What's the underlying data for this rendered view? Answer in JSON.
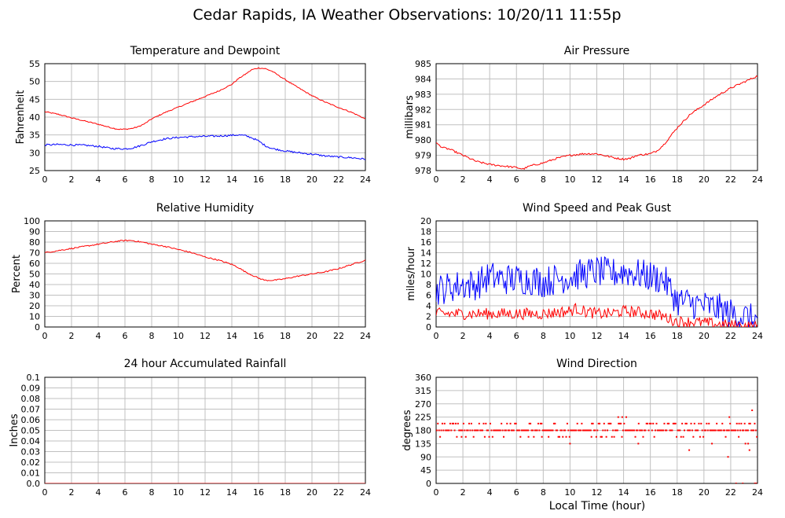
{
  "page_title": "Cedar Rapids, IA Weather Observations: 10/20/11 11:55p",
  "colors": {
    "red": "#ff0000",
    "blue": "#0000ff",
    "grid": "#c0c0c0",
    "frame": "#000000"
  },
  "chart_data": [
    {
      "id": "temperature",
      "type": "line",
      "title": "Temperature and Dewpoint",
      "ylabel": "Fahrenheit",
      "xlabel": "",
      "xlim": [
        0,
        24
      ],
      "ylim": [
        25,
        55
      ],
      "xticks": [
        "0",
        "2",
        "4",
        "6",
        "8",
        "10",
        "12",
        "14",
        "16",
        "18",
        "20",
        "22",
        "24"
      ],
      "yticks": [
        "25",
        "30",
        "35",
        "40",
        "45",
        "50",
        "55"
      ],
      "grid": true,
      "series": [
        {
          "color": "#ff0000",
          "noise": 0.15,
          "x": [
            0,
            1,
            2,
            3,
            4,
            5,
            5.5,
            6,
            6.5,
            7,
            7.5,
            8,
            9,
            10,
            11,
            12,
            13,
            14,
            14.5,
            15,
            15.5,
            16,
            16.5,
            17,
            18,
            19,
            20,
            21,
            22,
            23,
            24
          ],
          "y": [
            41.5,
            40.8,
            39.8,
            38.9,
            38.0,
            37.0,
            36.6,
            36.6,
            36.8,
            37.3,
            38.2,
            39.5,
            41.3,
            42.8,
            44.3,
            45.8,
            47.3,
            49.2,
            50.8,
            52.0,
            53.3,
            53.8,
            53.6,
            52.9,
            50.5,
            48.2,
            46.0,
            44.2,
            42.7,
            41.3,
            39.5
          ]
        },
        {
          "color": "#0000ff",
          "noise": 0.25,
          "x": [
            0,
            1,
            2,
            3,
            4,
            5,
            6,
            6.5,
            7,
            7.5,
            8,
            9,
            10,
            11,
            12,
            13,
            14,
            14.5,
            15,
            15.5,
            16,
            16.5,
            17,
            18,
            19,
            20,
            21,
            22,
            23,
            24
          ],
          "y": [
            32.2,
            32.3,
            32.2,
            32.1,
            31.8,
            31.2,
            31.1,
            31.3,
            31.8,
            32.4,
            33.1,
            33.9,
            34.3,
            34.5,
            34.6,
            34.7,
            34.9,
            35.0,
            34.8,
            34.2,
            33.3,
            32.0,
            31.2,
            30.5,
            30.0,
            29.6,
            29.1,
            28.8,
            28.6,
            28.2
          ]
        }
      ]
    },
    {
      "id": "pressure",
      "type": "line",
      "title": "Air Pressure",
      "ylabel": "millibars",
      "xlabel": "",
      "xlim": [
        0,
        24
      ],
      "ylim": [
        978,
        985
      ],
      "xticks": [
        "0",
        "2",
        "4",
        "6",
        "8",
        "10",
        "12",
        "14",
        "16",
        "18",
        "20",
        "22",
        "24"
      ],
      "yticks": [
        "978",
        "979",
        "980",
        "981",
        "982",
        "983",
        "984",
        "985"
      ],
      "grid": true,
      "series": [
        {
          "color": "#ff0000",
          "noise": 0.06,
          "x": [
            0,
            0.5,
            1,
            1.5,
            2,
            3,
            4,
            5,
            6,
            6.5,
            7,
            8,
            9,
            10,
            11,
            12,
            13,
            13.5,
            14,
            14.5,
            15,
            16,
            16.5,
            17,
            18,
            19,
            20,
            21,
            22,
            23,
            24
          ],
          "y": [
            979.8,
            979.5,
            979.4,
            979.2,
            979.0,
            978.6,
            978.4,
            978.3,
            978.2,
            978.1,
            978.3,
            978.5,
            978.8,
            979.0,
            979.1,
            979.1,
            978.9,
            978.8,
            978.75,
            978.8,
            979.0,
            979.1,
            979.3,
            979.7,
            980.8,
            981.7,
            982.3,
            982.9,
            983.4,
            983.8,
            984.2
          ]
        }
      ]
    },
    {
      "id": "humidity",
      "type": "line",
      "title": "Relative Humidity",
      "ylabel": "Percent",
      "xlabel": "",
      "xlim": [
        0,
        24
      ],
      "ylim": [
        0,
        100
      ],
      "xticks": [
        "0",
        "2",
        "4",
        "6",
        "8",
        "10",
        "12",
        "14",
        "16",
        "18",
        "20",
        "22",
        "24"
      ],
      "yticks": [
        "0",
        "10",
        "20",
        "30",
        "40",
        "50",
        "60",
        "70",
        "80",
        "90",
        "100"
      ],
      "grid": true,
      "series": [
        {
          "color": "#ff0000",
          "noise": 0.6,
          "x": [
            0,
            1,
            2,
            3,
            4,
            5,
            5.5,
            6,
            6.5,
            7,
            7.5,
            8,
            9,
            10,
            11,
            12,
            13,
            14,
            14.5,
            15,
            15.5,
            16,
            16.5,
            17,
            17.5,
            18,
            19,
            20,
            21,
            22,
            23,
            24
          ],
          "y": [
            70,
            72,
            74,
            76,
            78,
            80,
            81,
            81.5,
            81.5,
            80.5,
            79.5,
            78,
            76,
            73,
            70,
            66,
            63,
            59,
            56,
            52,
            49,
            46,
            44,
            44,
            44.5,
            45.5,
            48,
            50,
            52,
            55,
            59,
            63
          ]
        }
      ]
    },
    {
      "id": "wind_speed",
      "type": "line",
      "title": "Wind Speed and Peak Gust",
      "ylabel": "miles/hour",
      "xlabel": "",
      "xlim": [
        0,
        24
      ],
      "ylim": [
        0,
        20
      ],
      "xticks": [
        "0",
        "2",
        "4",
        "6",
        "8",
        "10",
        "12",
        "14",
        "16",
        "18",
        "20",
        "22",
        "24"
      ],
      "yticks": [
        "0",
        "2",
        "4",
        "6",
        "8",
        "10",
        "12",
        "14",
        "16",
        "18",
        "20"
      ],
      "grid": true,
      "series": [
        {
          "color": "#0000ff",
          "noise": 3.0,
          "clamp_min": 0,
          "x": [
            0,
            1,
            2,
            3,
            4,
            5,
            6,
            7,
            8,
            9,
            10,
            11,
            12,
            13,
            14,
            15,
            16,
            17,
            17.5,
            18,
            19,
            20,
            21,
            22,
            23,
            24
          ],
          "y": [
            7,
            7.5,
            8,
            8,
            9.5,
            9,
            9,
            9,
            8.5,
            9,
            9.5,
            10,
            10.5,
            10,
            10.5,
            10,
            9.5,
            9,
            7,
            5,
            4.5,
            4,
            3.5,
            2.5,
            2,
            1
          ]
        },
        {
          "color": "#ff0000",
          "noise": 1.1,
          "clamp_min": 0,
          "x": [
            0,
            2,
            4,
            6,
            8,
            10,
            10.5,
            11,
            12,
            13,
            14,
            15,
            16,
            17,
            18,
            19,
            20,
            21,
            22,
            23,
            24
          ],
          "y": [
            2.5,
            2.5,
            2.5,
            2.5,
            2.5,
            3,
            3.5,
            3,
            2.5,
            2.5,
            3,
            2.8,
            2.5,
            2,
            1,
            1,
            0.8,
            0.5,
            0.3,
            0.2,
            0
          ]
        }
      ]
    },
    {
      "id": "rainfall",
      "type": "line",
      "title": "24 hour Accumulated Rainfall",
      "ylabel": "Inches",
      "xlabel": "",
      "xlim": [
        0,
        24
      ],
      "ylim": [
        0,
        0.1
      ],
      "xticks": [
        "0",
        "2",
        "4",
        "6",
        "8",
        "10",
        "12",
        "14",
        "16",
        "18",
        "20",
        "22",
        "24"
      ],
      "yticks": [
        "0.0",
        "0.01",
        "0.02",
        "0.03",
        "0.04",
        "0.05",
        "0.06",
        "0.07",
        "0.08",
        "0.09",
        "0.1"
      ],
      "grid": true,
      "series": [
        {
          "color": "#ff0000",
          "noise": 0,
          "x": [
            0,
            24
          ],
          "y": [
            0,
            0
          ]
        }
      ]
    },
    {
      "id": "wind_direction",
      "type": "scatter",
      "title": "Wind Direction",
      "ylabel": "degrees",
      "xlabel": "Local Time (hour)",
      "xlim": [
        0,
        24
      ],
      "ylim": [
        0,
        360
      ],
      "xticks": [
        "0",
        "2",
        "4",
        "6",
        "8",
        "10",
        "12",
        "14",
        "16",
        "18",
        "20",
        "22",
        "24"
      ],
      "yticks": [
        "0",
        "45",
        "90",
        "135",
        "180",
        "225",
        "270",
        "315",
        "360"
      ],
      "grid": true,
      "base_value": 180,
      "alt_values": [
        203,
        180,
        180,
        158,
        180,
        203,
        180,
        180
      ],
      "step_hours": 0.0833,
      "series": [
        {
          "color": "#ff0000",
          "x": [
            1.9,
            6.9,
            7.9,
            8.4,
            10.0,
            11.6,
            13.6,
            13.9,
            14.2,
            15.1,
            18.9,
            20.6,
            21.8,
            21.9,
            22.4,
            22.6,
            22.9,
            23.1,
            23.3,
            23.4,
            23.6,
            23.8,
            23.9
          ],
          "y": [
            158,
            158,
            158,
            158,
            135,
            158,
            225,
            225,
            225,
            135,
            113,
            135,
            90,
            225,
            0,
            158,
            0,
            135,
            135,
            113,
            248,
            0,
            0
          ]
        }
      ]
    }
  ]
}
